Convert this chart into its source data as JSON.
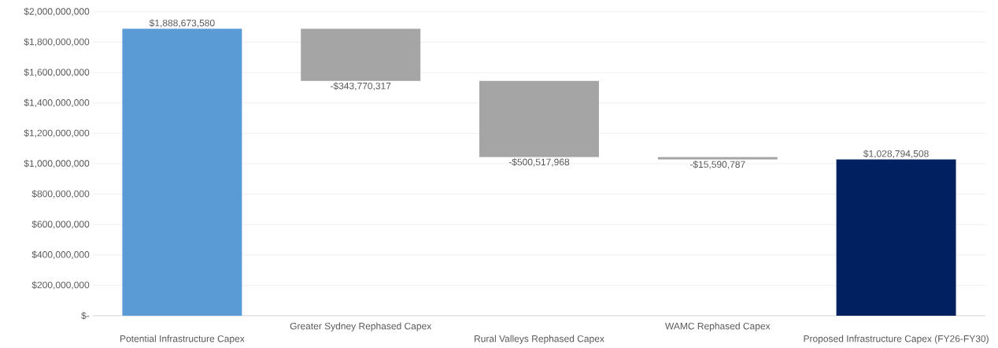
{
  "chart_data": {
    "type": "bar",
    "categories": [
      "Potential Infrastructure Capex",
      "Greater Sydney Rephased Capex",
      "Rural Valleys Rephased Capex",
      "WAMC Rephased Capex",
      "Proposed Infrastructure Capex (FY26-FY30)"
    ],
    "values": [
      1888673580,
      -343770317,
      -500517968,
      -15590787,
      1028794508
    ],
    "base": [
      0,
      1888673580,
      1544903263,
      1044385295,
      0
    ],
    "colors": [
      "#5b9bd5",
      "#a5a5a5",
      "#a5a5a5",
      "#a5a5a5",
      "#002060"
    ],
    "value_labels": [
      "$1,888,673,580",
      "-$343,770,317",
      "-$500,517,968",
      "-$15,590,787",
      "$1,028,794,508"
    ],
    "ylim": [
      0,
      2000000000
    ],
    "yticks": [
      {
        "value": 0,
        "label": "$-"
      },
      {
        "value": 200000000,
        "label": "$200,000,000"
      },
      {
        "value": 400000000,
        "label": "$400,000,000"
      },
      {
        "value": 600000000,
        "label": "$600,000,000"
      },
      {
        "value": 800000000,
        "label": "$800,000,000"
      },
      {
        "value": 1000000000,
        "label": "$1,000,000,000"
      },
      {
        "value": 1200000000,
        "label": "$1,200,000,000"
      },
      {
        "value": 1400000000,
        "label": "$1,400,000,000"
      },
      {
        "value": 1600000000,
        "label": "$1,600,000,000"
      },
      {
        "value": 1800000000,
        "label": "$1,800,000,000"
      },
      {
        "value": 2000000000,
        "label": "$2,000,000,000"
      }
    ],
    "grid": "y"
  }
}
